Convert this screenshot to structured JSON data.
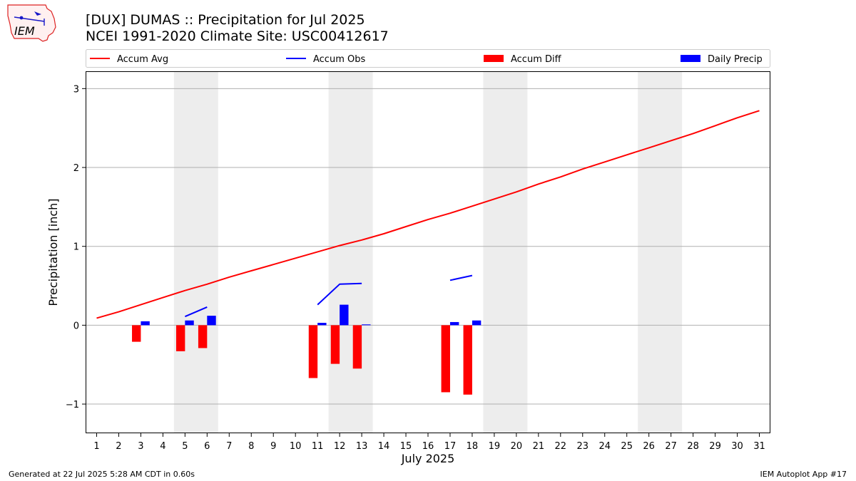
{
  "logo": {
    "text": "IEM"
  },
  "header": {
    "title": "[DUX] DUMAS :: Precipitation for Jul 2025",
    "subtitle": "NCEI 1991-2020 Climate Site: USC00412617"
  },
  "footer": {
    "generated": "Generated at 22 Jul 2025 5:28 AM CDT in 0.60s",
    "app": "IEM Autoplot App #17"
  },
  "colors": {
    "avg": "#ff0000",
    "obs": "#0000ff",
    "diff": "#ff0000",
    "daily": "#0000ff",
    "weekend": "#ededed",
    "grid": "#b0b0b0"
  },
  "chart_data": {
    "type": "bar",
    "xlabel": "July 2025",
    "ylabel": "Precipitation [inch]",
    "x": [
      1,
      2,
      3,
      4,
      5,
      6,
      7,
      8,
      9,
      10,
      11,
      12,
      13,
      14,
      15,
      16,
      17,
      18,
      19,
      20,
      21,
      22,
      23,
      24,
      25,
      26,
      27,
      28,
      29,
      30,
      31
    ],
    "xlim": [
      0.5,
      31.5
    ],
    "ylim": [
      -1.37,
      3.22
    ],
    "yticks": [
      -1,
      0,
      1,
      2,
      3
    ],
    "ytick_labels": [
      "−1",
      "0",
      "1",
      "2",
      "3"
    ],
    "grid": "y",
    "legend_position": "top",
    "shaded_days": [
      [
        5,
        6
      ],
      [
        12,
        13
      ],
      [
        19,
        20
      ],
      [
        26,
        27
      ]
    ],
    "series": [
      {
        "name": "Accum Avg",
        "kind": "line",
        "values": [
          0.09,
          0.17,
          0.26,
          0.35,
          0.44,
          0.52,
          0.61,
          0.69,
          0.77,
          0.85,
          0.93,
          1.01,
          1.08,
          1.16,
          1.25,
          1.34,
          1.42,
          1.51,
          1.6,
          1.69,
          1.79,
          1.88,
          1.98,
          2.07,
          2.16,
          2.25,
          2.34,
          2.43,
          2.53,
          2.63,
          2.72
        ]
      },
      {
        "name": "Accum Obs",
        "kind": "line",
        "values": [
          null,
          null,
          null,
          null,
          0.11,
          0.23,
          null,
          null,
          null,
          null,
          0.26,
          0.52,
          0.53,
          null,
          null,
          null,
          0.57,
          0.63,
          null,
          null,
          null,
          null,
          null,
          null,
          null,
          null,
          null,
          null,
          null,
          null,
          null
        ]
      },
      {
        "name": "Accum Diff",
        "kind": "bar",
        "offset": "left",
        "values": [
          0,
          0,
          -0.21,
          0,
          -0.33,
          -0.29,
          0,
          0,
          0,
          0,
          -0.67,
          -0.49,
          -0.55,
          0,
          0,
          0,
          -0.85,
          -0.88,
          0,
          0,
          0,
          0,
          0,
          0,
          0,
          0,
          0,
          0,
          0,
          0,
          0
        ]
      },
      {
        "name": "Daily Precip",
        "kind": "bar",
        "offset": "right",
        "values": [
          0,
          0,
          0.05,
          0,
          0.06,
          0.12,
          0,
          0,
          0,
          0,
          0.03,
          0.26,
          0.01,
          0,
          0,
          0,
          0.04,
          0.06,
          0,
          0,
          0,
          0,
          0,
          0,
          0,
          0,
          0,
          0,
          0,
          0,
          0
        ]
      }
    ]
  }
}
